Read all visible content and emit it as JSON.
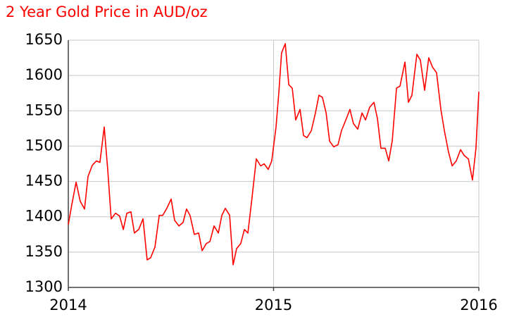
{
  "chart_data": {
    "type": "line",
    "title": "2 Year Gold Price in AUD/oz",
    "color": "#ff0000",
    "grid": true,
    "xlim": [
      2014,
      2016
    ],
    "xticks": [
      2014,
      2015,
      2016
    ],
    "ylim": [
      1300,
      1650
    ],
    "yticks": [
      1300,
      1350,
      1400,
      1450,
      1500,
      1550,
      1600,
      1650
    ],
    "x": [
      2014.0,
      2014.017,
      2014.038,
      2014.058,
      2014.079,
      2014.096,
      2014.117,
      2014.137,
      2014.154,
      2014.175,
      2014.192,
      2014.209,
      2014.23,
      2014.25,
      2014.268,
      2014.285,
      2014.305,
      2014.322,
      2014.343,
      2014.364,
      2014.384,
      2014.401,
      2014.422,
      2014.443,
      2014.46,
      2014.48,
      2014.501,
      2014.518,
      2014.539,
      2014.559,
      2014.576,
      2014.593,
      2014.614,
      2014.635,
      2014.652,
      2014.672,
      2014.69,
      2014.71,
      2014.731,
      2014.748,
      2014.765,
      2014.786,
      2014.803,
      2014.82,
      2014.84,
      2014.858,
      2014.875,
      2014.895,
      2014.916,
      2014.937,
      2014.954,
      2014.974,
      2014.991,
      2015.012,
      2015.026,
      2015.039,
      2015.057,
      2015.074,
      2015.091,
      2015.108,
      2015.129,
      2015.146,
      2015.163,
      2015.184,
      2015.204,
      2015.221,
      2015.238,
      2015.256,
      2015.273,
      2015.293,
      2015.314,
      2015.331,
      2015.352,
      2015.372,
      2015.389,
      2015.41,
      2015.431,
      2015.448,
      2015.468,
      2015.489,
      2015.506,
      2015.523,
      2015.544,
      2015.561,
      2015.578,
      2015.599,
      2015.616,
      2015.64,
      2015.657,
      2015.674,
      2015.698,
      2015.715,
      2015.736,
      2015.756,
      2015.774,
      2015.794,
      2015.815,
      2015.832,
      2015.852,
      2015.87,
      2015.89,
      2015.911,
      2015.928,
      2015.949,
      2015.969,
      2015.986,
      2016.0
    ],
    "values": [
      1389,
      1417,
      1449,
      1422,
      1411,
      1457,
      1473,
      1479,
      1477,
      1527,
      1467,
      1397,
      1405,
      1401,
      1382,
      1405,
      1407,
      1377,
      1382,
      1397,
      1339,
      1342,
      1357,
      1402,
      1402,
      1412,
      1425,
      1395,
      1387,
      1392,
      1411,
      1402,
      1375,
      1377,
      1352,
      1362,
      1365,
      1387,
      1377,
      1402,
      1412,
      1402,
      1332,
      1355,
      1362,
      1382,
      1377,
      1427,
      1482,
      1472,
      1475,
      1467,
      1479,
      1527,
      1577,
      1632,
      1645,
      1587,
      1582,
      1537,
      1552,
      1515,
      1512,
      1522,
      1547,
      1572,
      1569,
      1547,
      1507,
      1499,
      1502,
      1522,
      1537,
      1552,
      1532,
      1524,
      1547,
      1537,
      1555,
      1562,
      1539,
      1497,
      1497,
      1479,
      1507,
      1582,
      1585,
      1619,
      1562,
      1572,
      1630,
      1622,
      1579,
      1625,
      1612,
      1604,
      1552,
      1522,
      1492,
      1472,
      1479,
      1495,
      1487,
      1482,
      1452,
      1497,
      1577
    ]
  }
}
